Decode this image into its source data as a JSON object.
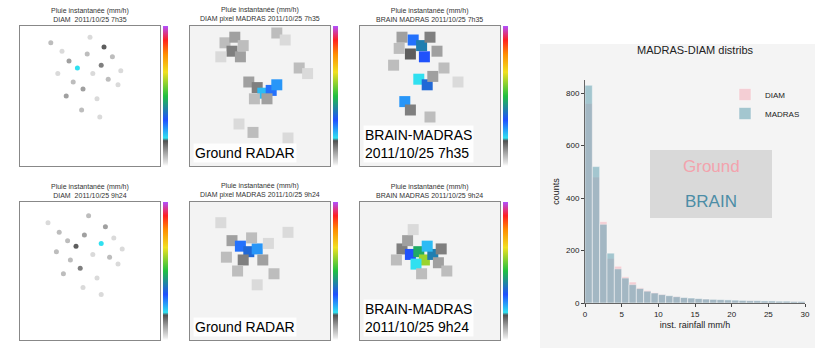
{
  "chart_data": [
    {
      "type": "scatter",
      "title": "Pluie instantanée (mm/h)",
      "subtitle": "DIAM  2011/10/25 7h35",
      "marker": "circle",
      "x": [
        22,
        30,
        35,
        41,
        48,
        52,
        58,
        63,
        70,
        45,
        38,
        55,
        60,
        27,
        66,
        50,
        44,
        72,
        33,
        57
      ],
      "y": [
        88,
        82,
        75,
        70,
        80,
        66,
        72,
        62,
        58,
        55,
        60,
        48,
        85,
        66,
        78,
        92,
        40,
        68,
        50,
        35
      ],
      "values": [
        2,
        1,
        3,
        6,
        2,
        1,
        4,
        2,
        1,
        3,
        2,
        1,
        5,
        1,
        2,
        1,
        2,
        1,
        3,
        1
      ],
      "crange": [
        0,
        30
      ],
      "xlim": [
        0,
        100
      ],
      "ylim": [
        0,
        100
      ],
      "tick_labels": false
    },
    {
      "type": "scatter",
      "title": "Pluie instantanée (mm/h)",
      "subtitle": "DIAM pixel MADRAS 2011/10/25 7h35",
      "marker": "square",
      "annotations": [
        "Ground RADAR"
      ],
      "x": [
        25,
        32,
        30,
        38,
        36,
        22,
        62,
        68,
        42,
        48,
        52,
        58,
        55,
        46,
        62,
        78,
        84,
        35,
        45,
        70
      ],
      "y": [
        88,
        92,
        82,
        86,
        78,
        78,
        95,
        90,
        60,
        56,
        52,
        54,
        48,
        48,
        58,
        70,
        66,
        30,
        24,
        20
      ],
      "values": [
        2,
        3,
        4,
        2,
        3,
        1,
        2,
        1,
        3,
        4,
        7,
        9,
        3,
        2,
        8,
        2,
        1,
        1,
        2,
        1
      ],
      "crange": [
        0,
        30
      ],
      "xlim": [
        0,
        100
      ],
      "ylim": [
        0,
        100
      ],
      "tick_labels": false
    },
    {
      "type": "scatter",
      "title": "Pluie instantanée (mm/h)",
      "subtitle": "BRAIN MADRAS 2011/10/25 7h35",
      "marker": "square",
      "annotations": [
        "BRAIN-MADRAS 2011/10/25 7h35"
      ],
      "x": [
        30,
        38,
        44,
        50,
        36,
        46,
        55,
        28,
        42,
        48,
        52,
        60,
        32,
        36,
        50,
        70,
        24
      ],
      "y": [
        92,
        90,
        86,
        92,
        80,
        78,
        82,
        84,
        62,
        58,
        64,
        70,
        46,
        40,
        35,
        60,
        72
      ],
      "values": [
        3,
        9,
        12,
        4,
        5,
        10,
        3,
        2,
        6,
        11,
        3,
        2,
        8,
        4,
        2,
        1,
        2
      ],
      "crange": [
        0,
        30
      ],
      "xlim": [
        0,
        100
      ],
      "ylim": [
        0,
        100
      ],
      "tick_labels": false
    },
    {
      "type": "scatter",
      "title": "Pluie instantanée (mm/h)",
      "subtitle": "DIAM  2011/10/25 9h24",
      "marker": "circle",
      "x": [
        20,
        28,
        34,
        40,
        46,
        52,
        58,
        64,
        70,
        43,
        36,
        55,
        61,
        26,
        67,
        49,
        45,
        73,
        31,
        58
      ],
      "y": [
        85,
        78,
        72,
        68,
        76,
        62,
        70,
        60,
        55,
        52,
        58,
        45,
        82,
        64,
        74,
        90,
        38,
        66,
        48,
        33
      ],
      "values": [
        1,
        2,
        2,
        5,
        3,
        1,
        6,
        2,
        1,
        4,
        2,
        1,
        3,
        2,
        1,
        2,
        1,
        1,
        2,
        1
      ],
      "crange": [
        0,
        30
      ],
      "xlim": [
        0,
        100
      ],
      "ylim": [
        0,
        100
      ],
      "tick_labels": false
    },
    {
      "type": "scatter",
      "title": "Pluie instantanée (mm/h)",
      "subtitle": "DIAM pixel MADRAS 2011/10/25 9h24",
      "marker": "square",
      "annotations": [
        "Ground RADAR"
      ],
      "x": [
        30,
        36,
        42,
        48,
        38,
        52,
        44,
        26,
        56,
        60,
        34,
        70,
        22,
        48
      ],
      "y": [
        72,
        68,
        64,
        66,
        58,
        58,
        74,
        60,
        70,
        48,
        50,
        78,
        85,
        40
      ],
      "values": [
        3,
        9,
        11,
        8,
        4,
        3,
        2,
        2,
        1,
        2,
        2,
        1,
        1,
        1
      ],
      "crange": [
        0,
        30
      ],
      "xlim": [
        0,
        100
      ],
      "ylim": [
        0,
        100
      ],
      "tick_labels": false
    },
    {
      "type": "scatter",
      "title": "Pluie instantanée (mm/h)",
      "subtitle": "BRAIN MADRAS 2011/10/25 9h24",
      "marker": "square",
      "annotations": [
        "BRAIN-MADRAS 2011/10/25 9h24"
      ],
      "x": [
        30,
        36,
        42,
        46,
        52,
        48,
        40,
        56,
        26,
        58,
        34,
        44,
        62,
        38
      ],
      "y": [
        66,
        62,
        64,
        58,
        62,
        68,
        55,
        56,
        58,
        66,
        72,
        48,
        50,
        80
      ],
      "values": [
        4,
        10,
        14,
        18,
        12,
        7,
        6,
        3,
        2,
        4,
        3,
        2,
        2,
        1
      ],
      "crange": [
        0,
        30
      ],
      "xlim": [
        0,
        100
      ],
      "ylim": [
        0,
        100
      ],
      "tick_labels": false
    },
    {
      "type": "histogram",
      "title": "MADRAS-DIAM distribs",
      "x_label": "inst. rainfall mm/h",
      "y_label": "counts",
      "bins": [
        0,
        1,
        2,
        3,
        4,
        5,
        6,
        7,
        8,
        9,
        10,
        11,
        12,
        13,
        14,
        15,
        16,
        17,
        18,
        19,
        20,
        21,
        22,
        23,
        24,
        25,
        26,
        27,
        28,
        29,
        30
      ],
      "series": [
        {
          "name": "DIAM",
          "color": "#f4b6bf",
          "values": [
            760,
            480,
            310,
            170,
            140,
            100,
            80,
            58,
            48,
            40,
            33,
            27,
            25,
            20,
            18,
            16,
            15,
            13,
            12,
            11,
            10,
            9,
            9,
            8,
            7,
            7,
            6,
            6,
            6,
            5
          ]
        },
        {
          "name": "MADRAS",
          "color": "#6fa8b8",
          "values": [
            830,
            520,
            300,
            190,
            130,
            95,
            70,
            55,
            45,
            38,
            32,
            28,
            24,
            21,
            19,
            17,
            15,
            14,
            13,
            12,
            11,
            10,
            9,
            9,
            8,
            8,
            7,
            7,
            6,
            6
          ]
        }
      ],
      "xlim": [
        0,
        30
      ],
      "xticks": [
        0,
        5,
        10,
        15,
        20,
        25,
        30
      ],
      "ylim": [
        0,
        850
      ],
      "yticks": [
        0,
        200,
        400,
        600,
        800
      ],
      "legend": "top right",
      "annotations": [
        {
          "text": "Ground",
          "color": "#f3a3ad"
        },
        {
          "text": "BRAIN",
          "color": "#4c8da6"
        }
      ]
    }
  ]
}
